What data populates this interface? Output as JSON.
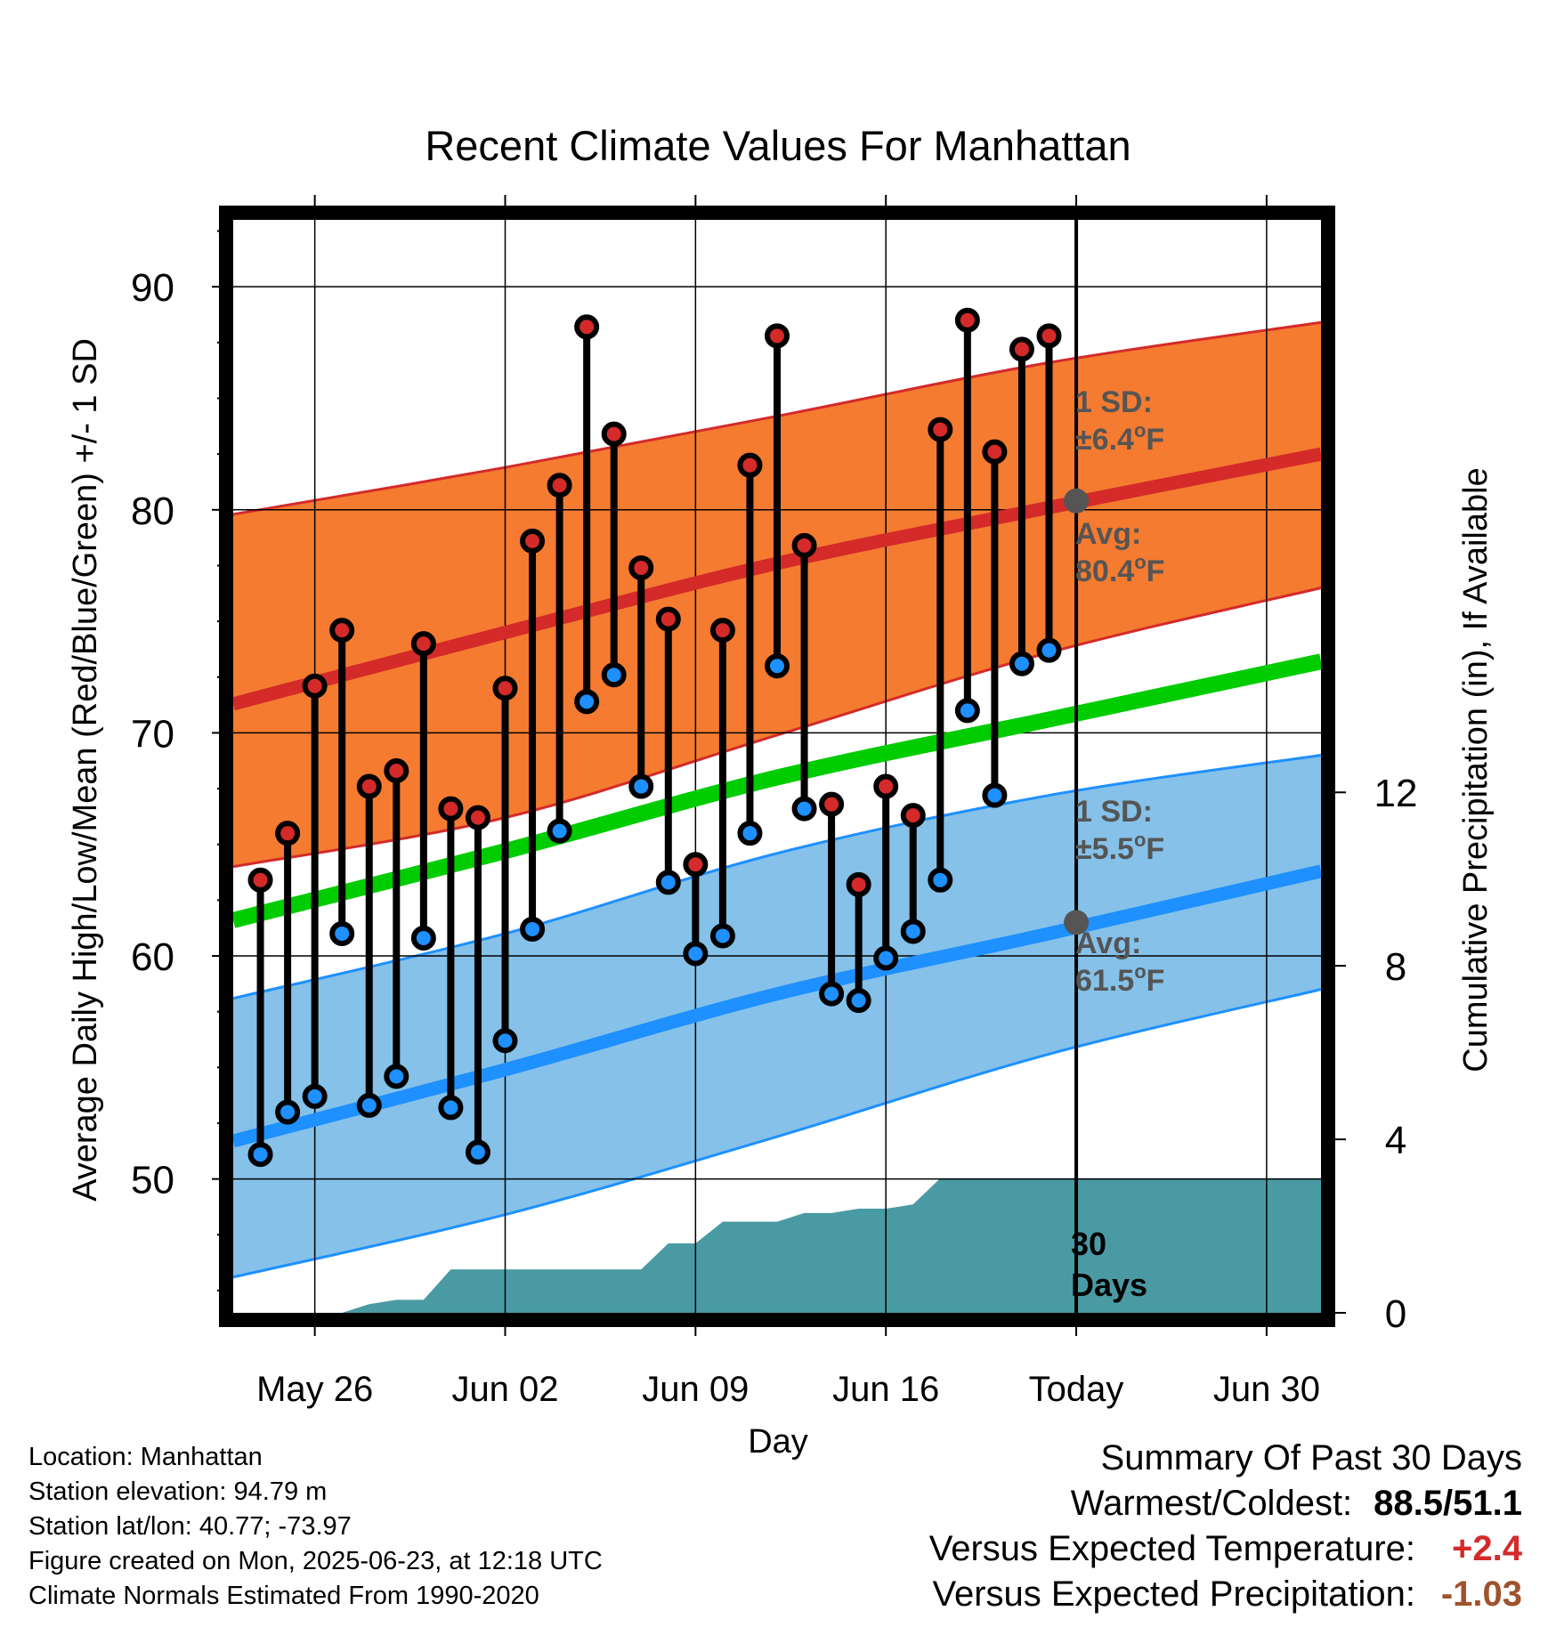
{
  "chart_data": {
    "type": "line",
    "title": "Recent Climate Values For Manhattan",
    "xlabel": "Day",
    "ylabel": "Average Daily High/Low/Mean (Red/Blue/Green) +/- 1 SD",
    "ylabel_right": "Cumulative Precipitation (in), If Available",
    "ylim": [
      44,
      93
    ],
    "y_ticks": [
      50,
      60,
      70,
      80,
      90
    ],
    "y_right_lim": [
      0,
      25.2
    ],
    "y_right_ticks": [
      0,
      4,
      8,
      12
    ],
    "x_range": [
      "May 23",
      "Jul 02"
    ],
    "x_ticks": [
      {
        "date": "May 26",
        "label": "May 26"
      },
      {
        "date": "Jun 02",
        "label": "Jun 02"
      },
      {
        "date": "Jun 09",
        "label": "Jun 09"
      },
      {
        "date": "Jun 16",
        "label": "Jun 16"
      },
      {
        "date": "Jun 23",
        "label": "Today"
      },
      {
        "date": "Jun 30",
        "label": "Jun 30"
      }
    ],
    "grid": true,
    "today": "Jun 23",
    "normals_x": [
      "May 23",
      "Jun 02",
      "Jun 12",
      "Jun 22",
      "Jul 02"
    ],
    "normal_high": [
      71.3,
      74.5,
      77.6,
      80.1,
      82.5
    ],
    "high_sd_upper": [
      79.8,
      81.9,
      84.2,
      86.6,
      88.4
    ],
    "high_sd_lower": [
      64.0,
      66.2,
      69.9,
      73.6,
      76.5
    ],
    "normal_mean": [
      61.6,
      64.7,
      68.0,
      70.6,
      73.2
    ],
    "normal_low": [
      51.7,
      54.9,
      58.3,
      61.0,
      63.8
    ],
    "low_sd_upper": [
      58.1,
      61.0,
      64.6,
      67.2,
      69.0
    ],
    "low_sd_lower": [
      45.6,
      48.4,
      51.9,
      55.6,
      58.5
    ],
    "series": [
      {
        "name": "High",
        "color": "#d42a2a",
        "x": [
          "May 24",
          "May 25",
          "May 26",
          "May 27",
          "May 28",
          "May 29",
          "May 30",
          "May 31",
          "Jun 01",
          "Jun 02",
          "Jun 03",
          "Jun 04",
          "Jun 05",
          "Jun 06",
          "Jun 07",
          "Jun 08",
          "Jun 09",
          "Jun 10",
          "Jun 11",
          "Jun 12",
          "Jun 13",
          "Jun 14",
          "Jun 15",
          "Jun 16",
          "Jun 17",
          "Jun 18",
          "Jun 19",
          "Jun 20",
          "Jun 21",
          "Jun 22"
        ],
        "values": [
          63.4,
          65.5,
          72.1,
          74.6,
          67.6,
          68.3,
          74.0,
          66.6,
          66.2,
          72.0,
          78.6,
          81.1,
          88.2,
          83.4,
          77.4,
          75.1,
          64.1,
          74.6,
          82.0,
          87.8,
          78.4,
          66.8,
          63.2,
          67.6,
          66.3,
          83.6,
          88.5,
          82.6,
          87.2,
          87.8
        ]
      },
      {
        "name": "Low",
        "color": "#1e90ff",
        "x": [
          "May 24",
          "May 25",
          "May 26",
          "May 27",
          "May 28",
          "May 29",
          "May 30",
          "May 31",
          "Jun 01",
          "Jun 02",
          "Jun 03",
          "Jun 04",
          "Jun 05",
          "Jun 06",
          "Jun 07",
          "Jun 08",
          "Jun 09",
          "Jun 10",
          "Jun 11",
          "Jun 12",
          "Jun 13",
          "Jun 14",
          "Jun 15",
          "Jun 16",
          "Jun 17",
          "Jun 18",
          "Jun 19",
          "Jun 20",
          "Jun 21",
          "Jun 22"
        ],
        "values": [
          51.1,
          53.0,
          53.7,
          61.0,
          53.3,
          54.6,
          60.8,
          53.2,
          51.2,
          56.2,
          61.2,
          65.6,
          71.4,
          72.6,
          67.6,
          63.3,
          60.1,
          60.9,
          65.5,
          73.0,
          66.6,
          58.3,
          58.0,
          59.9,
          61.1,
          63.4,
          71.0,
          67.2,
          73.1,
          73.7
        ]
      }
    ],
    "precipitation": {
      "x": [
        "May 23",
        "May 24",
        "May 25",
        "May 26",
        "May 27",
        "May 28",
        "May 29",
        "May 30",
        "May 31",
        "Jun 01",
        "Jun 02",
        "Jun 03",
        "Jun 04",
        "Jun 05",
        "Jun 06",
        "Jun 07",
        "Jun 08",
        "Jun 09",
        "Jun 10",
        "Jun 11",
        "Jun 12",
        "Jun 13",
        "Jun 14",
        "Jun 15",
        "Jun 16",
        "Jun 17",
        "Jun 18",
        "Jun 19",
        "Jun 20",
        "Jun 21",
        "Jun 22",
        "Jul 02"
      ],
      "values": [
        0,
        0,
        0,
        0,
        0,
        0.2,
        0.3,
        0.3,
        1.0,
        1.0,
        1.0,
        1.0,
        1.0,
        1.0,
        1.0,
        1.0,
        1.6,
        1.6,
        2.1,
        2.1,
        2.1,
        2.3,
        2.3,
        2.4,
        2.4,
        2.5,
        3.1,
        3.1,
        3.1,
        3.1,
        3.1,
        3.1
      ],
      "color": "#4a9aa4"
    },
    "annotations": {
      "high_sd": {
        "line1": "1 SD:",
        "line2": "±6.4",
        "unit": "F",
        "deg": "o"
      },
      "high_avg": {
        "line1": "Avg:",
        "line2": "80.4",
        "unit": "F",
        "deg": "o",
        "value": 80.4
      },
      "low_sd": {
        "line1": "1 SD:",
        "line2": "±5.5",
        "unit": "F",
        "deg": "o"
      },
      "low_avg": {
        "line1": "Avg:",
        "line2": "61.5",
        "unit": "F",
        "deg": "o",
        "value": 61.5
      },
      "period": {
        "line1": "30",
        "line2": "Days"
      }
    }
  },
  "station_info": [
    "Location: Manhattan",
    "Station elevation: 94.79 m",
    "Station lat/lon: 40.77; -73.97",
    "Figure created on Mon, 2025-06-23, at 12:18 UTC",
    "Climate Normals Estimated From 1990-2020"
  ],
  "summary": {
    "heading": "Summary Of Past 30 Days",
    "warmest_coldest_label": "Warmest/Coldest:",
    "warmest_coldest_value": "88.5/51.1",
    "temp_label": "Versus Expected Temperature:",
    "temp_value": "+2.4",
    "temp_color": "#d42a2a",
    "precip_label": "Versus Expected Precipitation:",
    "precip_value": "-1.03",
    "precip_color": "#a0522d"
  }
}
